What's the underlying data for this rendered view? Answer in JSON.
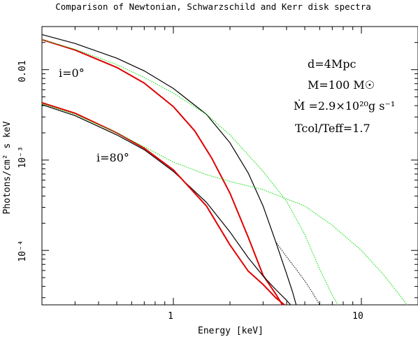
{
  "chart_data": {
    "type": "line",
    "title": "Comparison of Newtonian, Schwarzschild and Kerr disk spectra",
    "xlabel": "Energy [keV]",
    "ylabel": "Photons/cm² s keV",
    "x_scale": "log",
    "y_scale": "log",
    "xlim": [
      0.2,
      20
    ],
    "ylim": [
      2.5e-05,
      0.03
    ],
    "x_tick_labels": [
      {
        "value": 1,
        "label": "1"
      },
      {
        "value": 10,
        "label": "10"
      }
    ],
    "y_tick_labels": [
      {
        "value": 0.01,
        "label": "0.01"
      },
      {
        "value": 0.001,
        "label": "10⁻³"
      },
      {
        "value": 0.0001,
        "label": "10⁻⁴"
      }
    ],
    "annotations": {
      "distance": "d=4Mpc",
      "mass": "M=100 M☉",
      "accretion_rate": "Ṁ =2.9×10²⁰g s⁻¹",
      "color_correction": "Tcol/Teff=1.7",
      "incl_0": "i=0°",
      "incl_80": "i=80°"
    },
    "series": [
      {
        "inclination": "i=0°",
        "color": "#000000",
        "style": "solid",
        "points": [
          [
            0.2,
            0.0245
          ],
          [
            0.3,
            0.0195
          ],
          [
            0.5,
            0.0134
          ],
          [
            0.7,
            0.0097
          ],
          [
            1.0,
            0.0062
          ],
          [
            1.5,
            0.0032
          ],
          [
            2.0,
            0.00155
          ],
          [
            2.5,
            0.00072
          ],
          [
            3.0,
            0.00031
          ],
          [
            3.5,
            0.000125
          ],
          [
            4.0,
            5.5e-05
          ],
          [
            4.3,
            3.5e-05
          ],
          [
            4.5,
            2.5e-05
          ]
        ]
      },
      {
        "inclination": "i=0°",
        "color": "#000000",
        "style": "dotted",
        "points": [
          [
            3.5,
            0.000125
          ],
          [
            4.0,
            8.5e-05
          ],
          [
            4.5,
            6.2e-05
          ],
          [
            5.0,
            4.6e-05
          ],
          [
            5.5,
            3.4e-05
          ],
          [
            6.0,
            2.5e-05
          ]
        ]
      },
      {
        "inclination": "i=0°",
        "color": "#e00000",
        "style": "solid",
        "points": [
          [
            0.2,
            0.0215
          ],
          [
            0.3,
            0.0165
          ],
          [
            0.5,
            0.0106
          ],
          [
            0.7,
            0.0071
          ],
          [
            1.0,
            0.0039
          ],
          [
            1.3,
            0.0021
          ],
          [
            1.6,
            0.00105
          ],
          [
            2.0,
            0.00043
          ],
          [
            2.5,
            0.00014
          ],
          [
            3.0,
            5.3e-05
          ],
          [
            3.5,
            3.3e-05
          ],
          [
            3.8,
            2.5e-05
          ]
        ]
      },
      {
        "inclination": "i=0°",
        "color": "#00dd00",
        "style": "dotted",
        "points": [
          [
            0.2,
            0.0215
          ],
          [
            0.3,
            0.0168
          ],
          [
            0.5,
            0.0114
          ],
          [
            0.7,
            0.0082
          ],
          [
            1.0,
            0.0055
          ],
          [
            1.5,
            0.0032
          ],
          [
            2.0,
            0.0019
          ],
          [
            3.0,
            0.00075
          ],
          [
            4.0,
            0.00035
          ],
          [
            5.0,
            0.00015
          ],
          [
            6.0,
            6.2e-05
          ],
          [
            7.0,
            3.2e-05
          ],
          [
            7.5,
            2.5e-05
          ]
        ]
      },
      {
        "inclination": "i=80°",
        "color": "#000000",
        "style": "solid",
        "points": [
          [
            0.2,
            0.0041
          ],
          [
            0.3,
            0.0031
          ],
          [
            0.5,
            0.0019
          ],
          [
            0.7,
            0.0013
          ],
          [
            1.0,
            0.00075
          ],
          [
            1.5,
            0.00034
          ],
          [
            2.0,
            0.00016
          ],
          [
            2.5,
            8.3e-05
          ],
          [
            3.0,
            5.2e-05
          ],
          [
            3.5,
            3.7e-05
          ],
          [
            4.0,
            2.8e-05
          ],
          [
            4.2,
            2.5e-05
          ]
        ]
      },
      {
        "inclination": "i=80°",
        "color": "#e00000",
        "style": "solid",
        "points": [
          [
            0.2,
            0.0043
          ],
          [
            0.3,
            0.0033
          ],
          [
            0.5,
            0.002
          ],
          [
            0.7,
            0.00135
          ],
          [
            1.0,
            0.00078
          ],
          [
            1.5,
            0.00031
          ],
          [
            2.0,
            0.000115
          ],
          [
            2.5,
            5.9e-05
          ],
          [
            3.0,
            4.2e-05
          ],
          [
            3.5,
            3e-05
          ],
          [
            3.9,
            2.5e-05
          ]
        ]
      },
      {
        "inclination": "i=80°",
        "color": "#00dd00",
        "style": "dotted",
        "points": [
          [
            0.2,
            0.0042
          ],
          [
            0.3,
            0.0032
          ],
          [
            0.5,
            0.002
          ],
          [
            0.7,
            0.0014
          ],
          [
            1.0,
            0.00095
          ],
          [
            1.5,
            0.00069
          ],
          [
            2.0,
            0.00058
          ],
          [
            3.0,
            0.00047
          ],
          [
            5.0,
            0.00031
          ],
          [
            7.0,
            0.00019
          ],
          [
            10.0,
            0.0001
          ],
          [
            13.0,
            5.5e-05
          ],
          [
            16.0,
            3.2e-05
          ],
          [
            17.5,
            2.5e-05
          ]
        ]
      }
    ]
  }
}
